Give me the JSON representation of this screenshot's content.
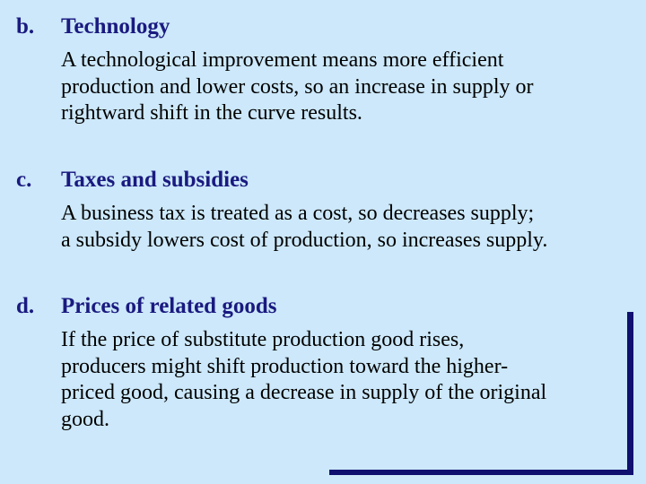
{
  "items": [
    {
      "letter": "b.",
      "heading": "Technology",
      "lines": [
        "A technological improvement means more efficient",
        "production and lower costs, so an increase in supply or",
        "rightward shift in the curve results."
      ]
    },
    {
      "letter": "c.",
      "heading": "Taxes and subsidies",
      "lines": [
        "A business tax is treated as a cost, so decreases supply;",
        "a subsidy lowers cost of production, so increases supply."
      ]
    },
    {
      "letter": "d.",
      "heading": "Prices of related goods",
      "lines": [
        "If the price of substitute production good rises,",
        "producers might shift production toward the higher-",
        "priced good, causing a decrease in supply of the original",
        "good."
      ]
    }
  ],
  "colors": {
    "background": "#cce8fa",
    "heading": "#1a1a80",
    "body_text": "#000000",
    "frame": "#101070"
  }
}
